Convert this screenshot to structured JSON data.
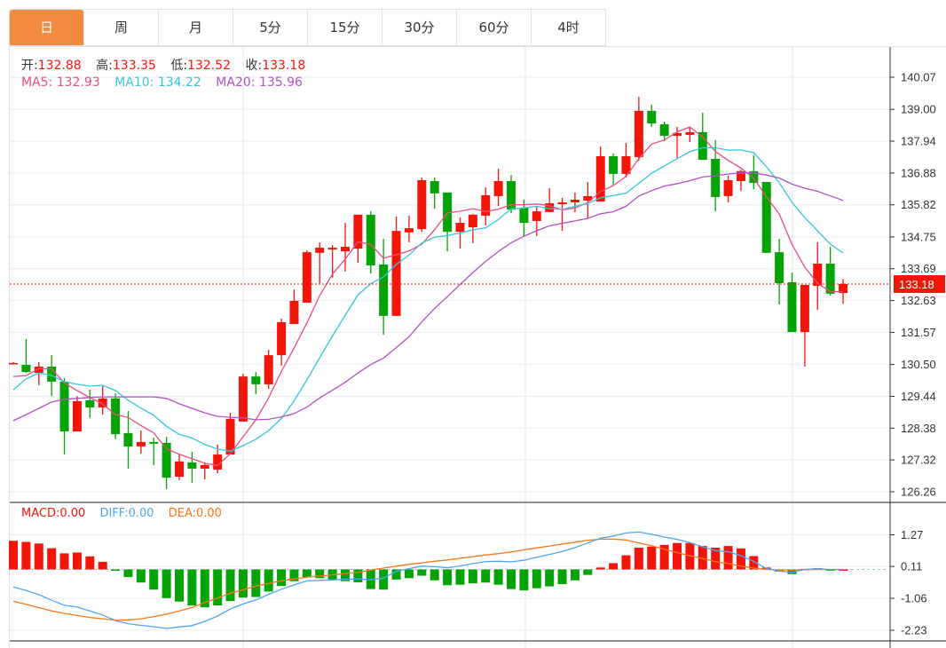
{
  "tabs": [
    "日",
    "周",
    "月",
    "5分",
    "15分",
    "30分",
    "60分",
    "4时"
  ],
  "active_tab": 0,
  "ohlc_header": {
    "open_label": "开:",
    "open": "132.88",
    "high_label": "高:",
    "high": "133.35",
    "low_label": "低:",
    "low": "132.52",
    "close_label": "收:",
    "close": "133.18"
  },
  "ma_header": {
    "ma5_label": "MA5:",
    "ma5": "132.93",
    "ma10_label": "MA10:",
    "ma10": "134.22",
    "ma20_label": "MA20:",
    "ma20": "135.96"
  },
  "macd_header": {
    "macd_label": "MACD:",
    "macd": "0.00",
    "diff_label": "DIFF:",
    "diff": "0.00",
    "dea_label": "DEA:",
    "dea": "0.00"
  },
  "colors": {
    "up": "#F2160A",
    "down": "#05A405",
    "ma5": "#EC4D7E",
    "ma10": "#36C6DC",
    "ma20": "#B152C6",
    "diff": "#4EA6F3",
    "dea": "#FF7518",
    "active_tab": "#F28B3F",
    "last_price": "#F2160A"
  },
  "chart_data": [
    {
      "type": "candlestick",
      "title": "",
      "yaxis_ticks": [
        "140.07",
        "139.00",
        "137.94",
        "136.88",
        "135.82",
        "134.75",
        "133.69",
        "132.63",
        "131.57",
        "130.50",
        "129.44",
        "128.38",
        "127.32",
        "126.26"
      ],
      "ylim": [
        126.26,
        140.07
      ],
      "last_price": "133.18",
      "grid": true,
      "candles_ohlc": [
        [
          130.53,
          130.58,
          130.5,
          130.55
        ],
        [
          130.49,
          131.35,
          130.22,
          130.25
        ],
        [
          130.22,
          130.58,
          129.81,
          130.43
        ],
        [
          130.43,
          130.81,
          129.45,
          129.93
        ],
        [
          129.93,
          130.05,
          127.5,
          128.27
        ],
        [
          128.27,
          129.45,
          128.27,
          129.28
        ],
        [
          129.31,
          129.66,
          128.72,
          129.07
        ],
        [
          129.07,
          129.78,
          128.83,
          129.37
        ],
        [
          129.37,
          129.54,
          128.01,
          128.18
        ],
        [
          128.21,
          128.95,
          127.03,
          127.77
        ],
        [
          127.77,
          128.3,
          127.53,
          127.92
        ],
        [
          127.92,
          128.06,
          127.15,
          127.86
        ],
        [
          127.89,
          128.09,
          126.35,
          126.73
        ],
        [
          126.76,
          127.53,
          126.65,
          127.27
        ],
        [
          127.24,
          127.59,
          126.56,
          127.03
        ],
        [
          127.03,
          127.21,
          126.67,
          127.15
        ],
        [
          127.0,
          127.83,
          126.88,
          127.5
        ],
        [
          127.5,
          128.89,
          127.5,
          128.69
        ],
        [
          128.6,
          130.19,
          128.6,
          130.1
        ],
        [
          130.1,
          130.25,
          129.51,
          129.84
        ],
        [
          129.84,
          130.99,
          129.69,
          130.81
        ],
        [
          130.81,
          132.03,
          130.46,
          131.91
        ],
        [
          131.85,
          133.0,
          131.85,
          132.62
        ],
        [
          132.56,
          134.3,
          132.56,
          134.24
        ],
        [
          134.22,
          134.57,
          133.21,
          134.39
        ],
        [
          134.33,
          134.48,
          133.39,
          134.39
        ],
        [
          134.27,
          135.22,
          133.59,
          134.42
        ],
        [
          134.36,
          135.49,
          133.89,
          135.49
        ],
        [
          135.49,
          135.6,
          133.53,
          133.8
        ],
        [
          133.83,
          134.69,
          131.49,
          132.12
        ],
        [
          132.12,
          135.43,
          132.12,
          134.95
        ],
        [
          134.9,
          135.46,
          134.57,
          135.04
        ],
        [
          135.01,
          136.73,
          134.92,
          136.64
        ],
        [
          136.61,
          136.73,
          135.69,
          136.2
        ],
        [
          136.23,
          136.23,
          134.27,
          134.92
        ],
        [
          134.92,
          135.4,
          134.36,
          135.22
        ],
        [
          135.07,
          135.52,
          134.54,
          135.49
        ],
        [
          135.46,
          136.4,
          135.13,
          136.14
        ],
        [
          136.11,
          137.02,
          135.78,
          136.61
        ],
        [
          136.61,
          136.82,
          135.55,
          135.66
        ],
        [
          135.72,
          135.99,
          134.78,
          135.22
        ],
        [
          135.28,
          135.78,
          134.78,
          135.6
        ],
        [
          135.58,
          136.37,
          135.58,
          135.87
        ],
        [
          135.84,
          136.05,
          134.95,
          135.9
        ],
        [
          135.9,
          136.23,
          135.58,
          135.99
        ],
        [
          135.96,
          136.58,
          135.37,
          136.11
        ],
        [
          135.93,
          137.76,
          135.93,
          137.44
        ],
        [
          137.44,
          137.53,
          136.49,
          136.85
        ],
        [
          136.85,
          137.88,
          136.73,
          137.44
        ],
        [
          137.41,
          139.42,
          137.29,
          138.95
        ],
        [
          138.95,
          139.15,
          138.41,
          138.53
        ],
        [
          138.5,
          138.59,
          137.94,
          138.12
        ],
        [
          138.12,
          138.41,
          137.38,
          138.21
        ],
        [
          138.15,
          138.41,
          137.91,
          138.24
        ],
        [
          138.24,
          138.89,
          137.32,
          137.32
        ],
        [
          137.35,
          137.97,
          135.6,
          136.08
        ],
        [
          136.11,
          136.79,
          135.9,
          136.64
        ],
        [
          136.61,
          136.99,
          136.28,
          136.94
        ],
        [
          136.94,
          137.47,
          136.34,
          136.55
        ],
        [
          136.58,
          136.58,
          134.22,
          134.22
        ],
        [
          134.24,
          134.69,
          132.5,
          133.21
        ],
        [
          133.24,
          133.56,
          131.58,
          131.58
        ],
        [
          131.58,
          133.15,
          130.43,
          133.15
        ],
        [
          133.12,
          134.57,
          132.32,
          133.86
        ],
        [
          133.86,
          134.42,
          132.8,
          132.86
        ],
        [
          132.88,
          133.35,
          132.52,
          133.18
        ]
      ],
      "ma_leading": {
        "ma5": [
          130.1,
          130.13,
          130.36,
          130.36
        ],
        "ma10": [
          129.66,
          130.02,
          130.22,
          130.13,
          129.93,
          129.84,
          129.78,
          129.81,
          129.63
        ],
        "ma20": [
          128.63,
          128.83,
          129.04,
          129.25,
          129.34,
          129.37,
          129.4,
          129.42,
          129.42,
          129.42,
          129.42,
          129.42,
          129.37,
          129.19,
          129.04,
          128.89,
          128.77,
          128.74,
          128.72
        ]
      },
      "ma_periods": [
        5,
        10,
        20
      ]
    },
    {
      "type": "bar+line",
      "title": "MACD",
      "yaxis_ticks": [
        "1.27",
        "0.11",
        "-1.06",
        "-2.23"
      ],
      "ylim": [
        -2.23,
        1.27
      ],
      "macd_hist": [
        1.05,
        1.01,
        0.95,
        0.78,
        0.59,
        0.62,
        0.48,
        0.28,
        -0.03,
        -0.28,
        -0.48,
        -0.74,
        -1.05,
        -1.18,
        -1.32,
        -1.39,
        -1.32,
        -1.16,
        -1.03,
        -1.01,
        -0.81,
        -0.61,
        -0.43,
        -0.28,
        -0.32,
        -0.37,
        -0.43,
        -0.47,
        -0.72,
        -0.74,
        -0.37,
        -0.32,
        -0.23,
        -0.4,
        -0.58,
        -0.56,
        -0.51,
        -0.48,
        -0.56,
        -0.72,
        -0.77,
        -0.69,
        -0.62,
        -0.54,
        -0.4,
        -0.2,
        0.07,
        0.23,
        0.52,
        0.8,
        0.84,
        0.9,
        0.97,
        0.97,
        0.86,
        0.8,
        0.86,
        0.77,
        0.49,
        0.07,
        -0.08,
        -0.17,
        0.02,
        0.05,
        -0.01,
        0.0
      ],
      "dea": [
        -1.17,
        -1.28,
        -1.4,
        -1.52,
        -1.61,
        -1.69,
        -1.76,
        -1.81,
        -1.86,
        -1.85,
        -1.81,
        -1.73,
        -1.64,
        -1.52,
        -1.4,
        -1.21,
        -1.05,
        -0.87,
        -0.75,
        -0.61,
        -0.51,
        -0.42,
        -0.35,
        -0.28,
        -0.24,
        -0.2,
        -0.15,
        -0.11,
        -0.02,
        0.05,
        0.12,
        0.19,
        0.24,
        0.3,
        0.35,
        0.41,
        0.47,
        0.53,
        0.58,
        0.64,
        0.72,
        0.79,
        0.86,
        0.93,
        1.0,
        1.07,
        1.11,
        1.11,
        1.08,
        0.97,
        0.87,
        0.74,
        0.62,
        0.5,
        0.4,
        0.29,
        0.22,
        0.12,
        0.05,
        0.0,
        -0.02,
        -0.02,
        -0.01,
        0.0,
        0.0,
        0.0
      ]
    }
  ]
}
